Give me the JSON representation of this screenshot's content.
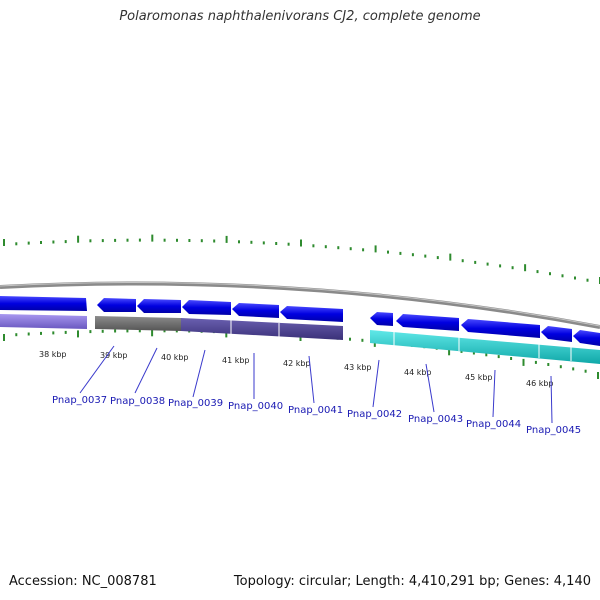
{
  "title": "Polaromonas naphthalenivorans CJ2, complete genome",
  "footer": {
    "accession": "Accession: NC_008781",
    "summary": "Topology: circular; Length: 4,410,291 bp; Genes: 4,140"
  },
  "colors": {
    "backbone": "#8a8a8a",
    "tick": "#2e8b2e",
    "gene_forward": "#0a0ae6",
    "label": "#1a1ab3",
    "callout_line": "#3a3acc",
    "cog_purple_light": "#8470d8",
    "cog_gray": "#707070",
    "cog_slate": "#4a4090",
    "cog_cyan": "#20c8c8"
  },
  "scale": {
    "unit": "kbp",
    "ticks": [
      "38 kbp",
      "39 kbp",
      "40 kbp",
      "41 kbp",
      "42 kbp",
      "43 kbp",
      "44 kbp",
      "45 kbp",
      "46 kbp"
    ]
  },
  "genes": [
    "Pnap_0037",
    "Pnap_0038",
    "Pnap_0039",
    "Pnap_0040",
    "Pnap_0041",
    "Pnap_0042",
    "Pnap_0043",
    "Pnap_0044",
    "Pnap_0045"
  ]
}
